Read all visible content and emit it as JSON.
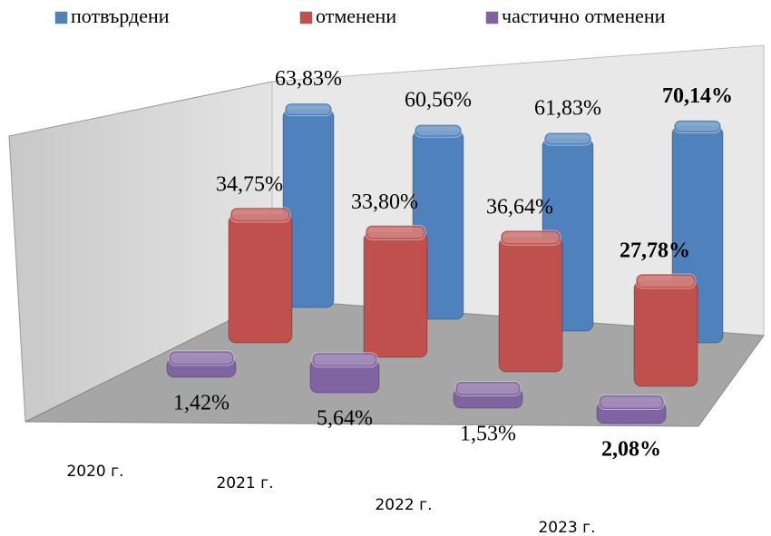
{
  "chart_data": {
    "type": "bar3d",
    "categories": [
      "2020 г.",
      "2021 г.",
      "2022 г.",
      "2023 г."
    ],
    "series": [
      {
        "name": "потвърдени",
        "color": "#4f81bd",
        "values": [
          63.83,
          60.56,
          61.83,
          70.14
        ],
        "value_labels": [
          "63,83%",
          "60,56%",
          "61,83%",
          "70,14%"
        ]
      },
      {
        "name": "отменени",
        "color": "#c0504d",
        "values": [
          34.75,
          33.8,
          36.64,
          27.78
        ],
        "value_labels": [
          "34,75%",
          "33,80%",
          "36,64%",
          "27,78%"
        ]
      },
      {
        "name": "частично отменени",
        "color": "#8064a2",
        "values": [
          1.42,
          5.64,
          1.53,
          2.08
        ],
        "value_labels": [
          "1,42%",
          "5,64%",
          "1,53%",
          "2,08%"
        ]
      }
    ]
  }
}
